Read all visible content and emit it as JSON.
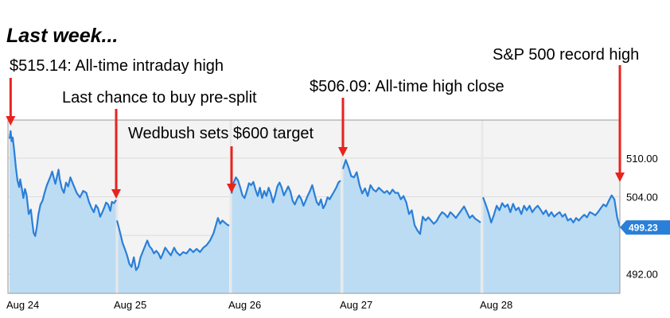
{
  "heading": "Last week...",
  "chart_data": {
    "type": "area",
    "ylim": [
      489,
      515.9
    ],
    "y_ticks": [
      510.0,
      504.0,
      498.0,
      492.0
    ],
    "y_tick_labels": [
      "510.00",
      "504.00",
      "",
      "492.00"
    ],
    "last_price_label": "499.23",
    "last_price": 499.23,
    "grid": true,
    "colors": {
      "line": "#2a7fd8",
      "fill": "#bcdcf4",
      "plot_bg": "#f3f3f3",
      "separator": "#e8e8e8",
      "badge": "#2a7fd8"
    },
    "days": [
      {
        "label": "Aug 24",
        "segment": [
          [
            0,
            513.0
          ],
          [
            0.005,
            513.6
          ],
          [
            0.01,
            514.2
          ],
          [
            0.02,
            512.6
          ],
          [
            0.03,
            513.2
          ],
          [
            0.045,
            511.0
          ],
          [
            0.06,
            508.5
          ],
          [
            0.075,
            506.5
          ],
          [
            0.09,
            505.5
          ],
          [
            0.1,
            506.7
          ],
          [
            0.115,
            505.3
          ],
          [
            0.13,
            503.8
          ],
          [
            0.145,
            505.2
          ],
          [
            0.16,
            504.3
          ],
          [
            0.18,
            501.3
          ],
          [
            0.2,
            502.0
          ],
          [
            0.215,
            499.8
          ],
          [
            0.225,
            498.4
          ],
          [
            0.24,
            497.9
          ],
          [
            0.255,
            499.2
          ],
          [
            0.27,
            501.2
          ],
          [
            0.29,
            502.8
          ],
          [
            0.31,
            503.4
          ],
          [
            0.33,
            504.7
          ],
          [
            0.35,
            505.8
          ],
          [
            0.37,
            506.6
          ],
          [
            0.385,
            507.2
          ],
          [
            0.4,
            507.9
          ],
          [
            0.42,
            506.6
          ],
          [
            0.43,
            506.0
          ],
          [
            0.445,
            507.1
          ],
          [
            0.46,
            508.2
          ],
          [
            0.47,
            506.8
          ],
          [
            0.49,
            505.3
          ],
          [
            0.51,
            504.6
          ],
          [
            0.53,
            506.2
          ],
          [
            0.55,
            505.6
          ],
          [
            0.57,
            507.0
          ],
          [
            0.6,
            505.8
          ],
          [
            0.63,
            504.6
          ],
          [
            0.66,
            503.9
          ],
          [
            0.69,
            504.9
          ],
          [
            0.72,
            504.6
          ],
          [
            0.745,
            503.2
          ],
          [
            0.77,
            502.2
          ],
          [
            0.79,
            501.6
          ],
          [
            0.81,
            502.7
          ],
          [
            0.83,
            502.2
          ],
          [
            0.85,
            500.9
          ],
          [
            0.87,
            501.6
          ],
          [
            0.89,
            502.4
          ],
          [
            0.905,
            503.1
          ],
          [
            0.925,
            502.8
          ],
          [
            0.945,
            501.8
          ],
          [
            0.96,
            503.2
          ],
          [
            0.98,
            503.0
          ],
          [
            1,
            503.5
          ]
        ]
      },
      {
        "label": "Aug 25",
        "segment": [
          [
            0,
            500.3
          ],
          [
            0.03,
            498.3
          ],
          [
            0.05,
            496.8
          ],
          [
            0.07,
            495.9
          ],
          [
            0.09,
            494.9
          ],
          [
            0.11,
            493.6
          ],
          [
            0.13,
            493.1
          ],
          [
            0.15,
            494.6
          ],
          [
            0.17,
            492.6
          ],
          [
            0.19,
            493.1
          ],
          [
            0.21,
            494.6
          ],
          [
            0.24,
            495.9
          ],
          [
            0.27,
            497.2
          ],
          [
            0.29,
            496.3
          ],
          [
            0.31,
            495.9
          ],
          [
            0.33,
            495.2
          ],
          [
            0.35,
            495.6
          ],
          [
            0.37,
            495.2
          ],
          [
            0.39,
            494.4
          ],
          [
            0.41,
            495.2
          ],
          [
            0.43,
            496.1
          ],
          [
            0.45,
            495.6
          ],
          [
            0.48,
            494.9
          ],
          [
            0.51,
            496.1
          ],
          [
            0.53,
            495.4
          ],
          [
            0.56,
            494.9
          ],
          [
            0.59,
            495.4
          ],
          [
            0.62,
            495.2
          ],
          [
            0.65,
            495.9
          ],
          [
            0.68,
            495.4
          ],
          [
            0.71,
            495.9
          ],
          [
            0.74,
            495.4
          ],
          [
            0.77,
            496.1
          ],
          [
            0.8,
            496.5
          ],
          [
            0.83,
            497.2
          ],
          [
            0.86,
            498.3
          ],
          [
            0.88,
            499.5
          ],
          [
            0.9,
            500.7
          ],
          [
            0.92,
            499.8
          ],
          [
            0.94,
            500.3
          ],
          [
            0.96,
            500.0
          ],
          [
            0.98,
            499.7
          ],
          [
            1,
            499.5
          ]
        ]
      },
      {
        "label": "Aug 26",
        "segment": [
          [
            0,
            504.5
          ],
          [
            0.02,
            506.2
          ],
          [
            0.04,
            507.0
          ],
          [
            0.06,
            506.5
          ],
          [
            0.08,
            505.4
          ],
          [
            0.1,
            504.2
          ],
          [
            0.12,
            503.8
          ],
          [
            0.14,
            504.9
          ],
          [
            0.16,
            506.1
          ],
          [
            0.18,
            505.8
          ],
          [
            0.2,
            506.3
          ],
          [
            0.22,
            505.1
          ],
          [
            0.24,
            504.1
          ],
          [
            0.26,
            505.4
          ],
          [
            0.28,
            503.8
          ],
          [
            0.3,
            504.9
          ],
          [
            0.32,
            504.1
          ],
          [
            0.34,
            505.4
          ],
          [
            0.36,
            504.5
          ],
          [
            0.38,
            503.1
          ],
          [
            0.4,
            504.2
          ],
          [
            0.42,
            505.6
          ],
          [
            0.44,
            506.2
          ],
          [
            0.46,
            505.4
          ],
          [
            0.48,
            504.2
          ],
          [
            0.5,
            504.9
          ],
          [
            0.52,
            505.6
          ],
          [
            0.54,
            504.8
          ],
          [
            0.56,
            503.4
          ],
          [
            0.58,
            502.8
          ],
          [
            0.6,
            503.6
          ],
          [
            0.62,
            504.2
          ],
          [
            0.64,
            503.6
          ],
          [
            0.66,
            502.6
          ],
          [
            0.68,
            503.4
          ],
          [
            0.7,
            504.2
          ],
          [
            0.72,
            504.9
          ],
          [
            0.74,
            505.8
          ],
          [
            0.76,
            504.5
          ],
          [
            0.78,
            503.2
          ],
          [
            0.8,
            502.7
          ],
          [
            0.82,
            503.6
          ],
          [
            0.84,
            502.2
          ],
          [
            0.86,
            502.8
          ],
          [
            0.88,
            503.9
          ],
          [
            0.9,
            503.6
          ],
          [
            0.92,
            504.2
          ],
          [
            0.94,
            504.8
          ],
          [
            0.96,
            505.4
          ],
          [
            0.98,
            506.2
          ],
          [
            1,
            506.5
          ]
        ]
      },
      {
        "label": "Aug 27",
        "segment": [
          [
            0,
            508.3
          ],
          [
            0.02,
            509.7
          ],
          [
            0.04,
            508.6
          ],
          [
            0.06,
            507.2
          ],
          [
            0.08,
            507.0
          ],
          [
            0.1,
            507.8
          ],
          [
            0.12,
            505.8
          ],
          [
            0.14,
            504.5
          ],
          [
            0.16,
            505.3
          ],
          [
            0.18,
            504.1
          ],
          [
            0.2,
            505.8
          ],
          [
            0.22,
            505.1
          ],
          [
            0.24,
            504.8
          ],
          [
            0.26,
            505.4
          ],
          [
            0.28,
            505.0
          ],
          [
            0.3,
            504.6
          ],
          [
            0.32,
            504.9
          ],
          [
            0.34,
            504.4
          ],
          [
            0.36,
            505.1
          ],
          [
            0.38,
            504.6
          ],
          [
            0.4,
            504.6
          ],
          [
            0.42,
            503.6
          ],
          [
            0.44,
            504.1
          ],
          [
            0.46,
            503.1
          ],
          [
            0.48,
            501.3
          ],
          [
            0.5,
            501.9
          ],
          [
            0.52,
            499.6
          ],
          [
            0.54,
            498.8
          ],
          [
            0.56,
            498.2
          ],
          [
            0.58,
            500.9
          ],
          [
            0.6,
            500.3
          ],
          [
            0.62,
            500.8
          ],
          [
            0.64,
            500.3
          ],
          [
            0.66,
            499.8
          ],
          [
            0.68,
            500.2
          ],
          [
            0.7,
            501.0
          ],
          [
            0.72,
            501.6
          ],
          [
            0.74,
            501.3
          ],
          [
            0.76,
            500.8
          ],
          [
            0.78,
            501.6
          ],
          [
            0.8,
            501.2
          ],
          [
            0.82,
            500.7
          ],
          [
            0.84,
            501.3
          ],
          [
            0.86,
            501.9
          ],
          [
            0.88,
            502.5
          ],
          [
            0.9,
            501.6
          ],
          [
            0.92,
            500.7
          ],
          [
            0.94,
            501.1
          ],
          [
            0.96,
            500.6
          ],
          [
            0.98,
            500.3
          ],
          [
            1,
            500.0
          ]
        ]
      },
      {
        "label": "Aug 28",
        "segment": [
          [
            0,
            503.9
          ],
          [
            0.02,
            502.8
          ],
          [
            0.04,
            501.5
          ],
          [
            0.06,
            500.0
          ],
          [
            0.08,
            501.2
          ],
          [
            0.1,
            502.6
          ],
          [
            0.12,
            501.9
          ],
          [
            0.14,
            503.0
          ],
          [
            0.16,
            502.4
          ],
          [
            0.18,
            502.8
          ],
          [
            0.2,
            501.6
          ],
          [
            0.22,
            502.9
          ],
          [
            0.24,
            501.9
          ],
          [
            0.26,
            502.3
          ],
          [
            0.28,
            501.3
          ],
          [
            0.3,
            502.6
          ],
          [
            0.32,
            501.9
          ],
          [
            0.34,
            502.6
          ],
          [
            0.36,
            501.6
          ],
          [
            0.38,
            502.2
          ],
          [
            0.4,
            502.6
          ],
          [
            0.42,
            502.0
          ],
          [
            0.44,
            501.3
          ],
          [
            0.46,
            501.9
          ],
          [
            0.48,
            501.0
          ],
          [
            0.5,
            501.6
          ],
          [
            0.52,
            500.9
          ],
          [
            0.54,
            501.3
          ],
          [
            0.56,
            501.6
          ],
          [
            0.58,
            500.9
          ],
          [
            0.6,
            501.3
          ],
          [
            0.62,
            500.3
          ],
          [
            0.64,
            500.6
          ],
          [
            0.66,
            500.0
          ],
          [
            0.68,
            500.7
          ],
          [
            0.7,
            500.3
          ],
          [
            0.72,
            500.8
          ],
          [
            0.74,
            501.2
          ],
          [
            0.76,
            500.8
          ],
          [
            0.78,
            501.6
          ],
          [
            0.8,
            501.4
          ],
          [
            0.82,
            501.1
          ],
          [
            0.84,
            501.6
          ],
          [
            0.86,
            502.2
          ],
          [
            0.88,
            502.8
          ],
          [
            0.9,
            502.5
          ],
          [
            0.92,
            503.4
          ],
          [
            0.94,
            504.2
          ],
          [
            0.96,
            503.6
          ],
          [
            0.98,
            500.8
          ],
          [
            1,
            499.23
          ]
        ]
      }
    ],
    "annotations": [
      {
        "text": "$515.14: All-time intraday high",
        "day": 0,
        "at": 0.01,
        "value": 514.2
      },
      {
        "text": "Last chance to buy pre-split",
        "day": 0,
        "at": 1.0,
        "value": 503.5
      },
      {
        "text": "Wedbush sets $600 target",
        "day": 2,
        "at": 0.0,
        "value": 504.5
      },
      {
        "text": "$506.09: All-time high close",
        "day": 3,
        "at": 0.0,
        "value": 508.3
      },
      {
        "text": "S&P 500 record high",
        "day": 4,
        "at": 1.0,
        "value": 503.6
      }
    ]
  }
}
